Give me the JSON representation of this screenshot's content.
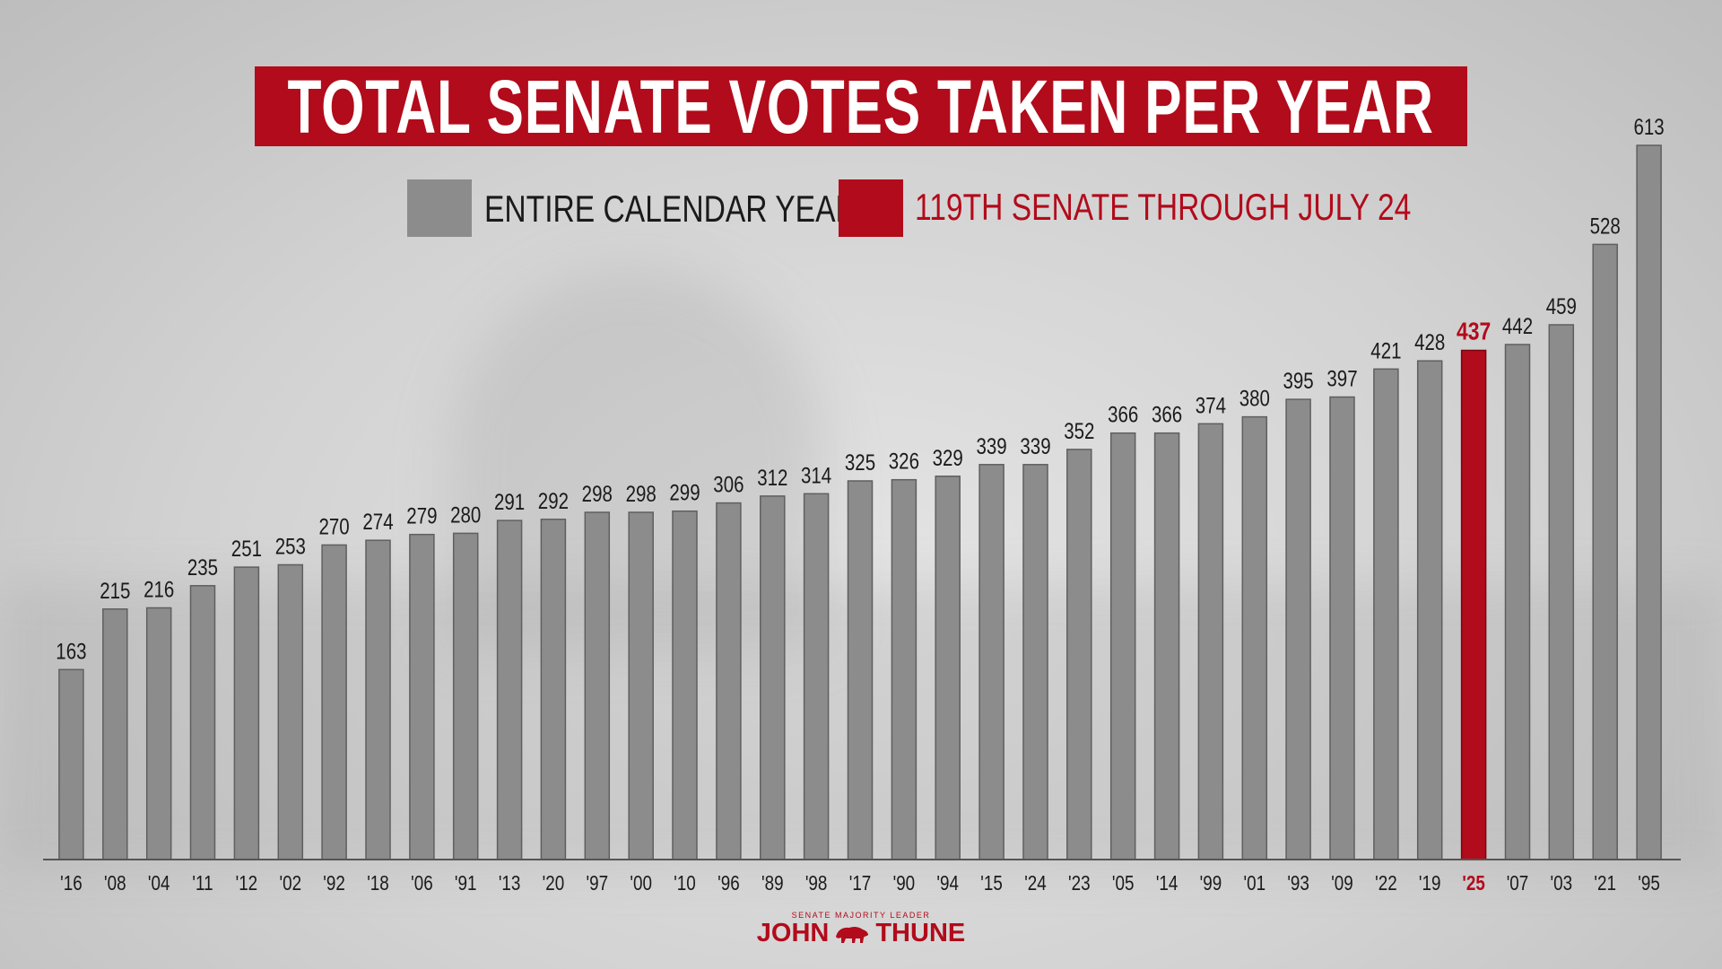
{
  "title": "TOTAL SENATE VOTES TAKEN PER YEAR",
  "legend": {
    "items": [
      {
        "label": "ENTIRE CALENDAR YEAR",
        "color": "#8c8c8c"
      },
      {
        "label": "119TH SENATE THROUGH JULY 24",
        "color": "#b20b1b"
      }
    ]
  },
  "brand": {
    "subtitle": "SENATE MAJORITY LEADER",
    "name_first": "JOHN",
    "name_last": "THUNE",
    "logo_icon": "bison-icon"
  },
  "colors": {
    "accent": "#b20b1b",
    "bar": "#8c8c8c",
    "text": "#1a1a1a"
  },
  "chart_data": {
    "type": "bar",
    "title": "TOTAL SENATE VOTES TAKEN PER YEAR",
    "xlabel": "",
    "ylabel": "",
    "ylim": [
      0,
      613
    ],
    "grid": false,
    "legend_position": "top",
    "categories": [
      "'16",
      "'08",
      "'04",
      "'11",
      "'12",
      "'02",
      "'92",
      "'18",
      "'06",
      "'91",
      "'13",
      "'20",
      "'97",
      "'00",
      "'10",
      "'96",
      "'89",
      "'98",
      "'17",
      "'90",
      "'94",
      "'15",
      "'24",
      "'23",
      "'05",
      "'14",
      "'99",
      "'01",
      "'93",
      "'09",
      "'22",
      "'19",
      "'25",
      "'07",
      "'03",
      "'21",
      "'95"
    ],
    "series": [
      {
        "name": "ENTIRE CALENDAR YEAR",
        "values": [
          163,
          215,
          216,
          235,
          251,
          253,
          270,
          274,
          279,
          280,
          291,
          292,
          298,
          298,
          299,
          306,
          312,
          314,
          325,
          326,
          329,
          339,
          339,
          352,
          366,
          366,
          374,
          380,
          395,
          397,
          421,
          428,
          null,
          442,
          459,
          528,
          613
        ]
      },
      {
        "name": "119TH SENATE THROUGH JULY 24",
        "values": [
          null,
          null,
          null,
          null,
          null,
          null,
          null,
          null,
          null,
          null,
          null,
          null,
          null,
          null,
          null,
          null,
          null,
          null,
          null,
          null,
          null,
          null,
          null,
          null,
          null,
          null,
          null,
          null,
          null,
          null,
          null,
          null,
          437,
          null,
          null,
          null,
          null
        ]
      }
    ],
    "highlight_category": "'25"
  }
}
